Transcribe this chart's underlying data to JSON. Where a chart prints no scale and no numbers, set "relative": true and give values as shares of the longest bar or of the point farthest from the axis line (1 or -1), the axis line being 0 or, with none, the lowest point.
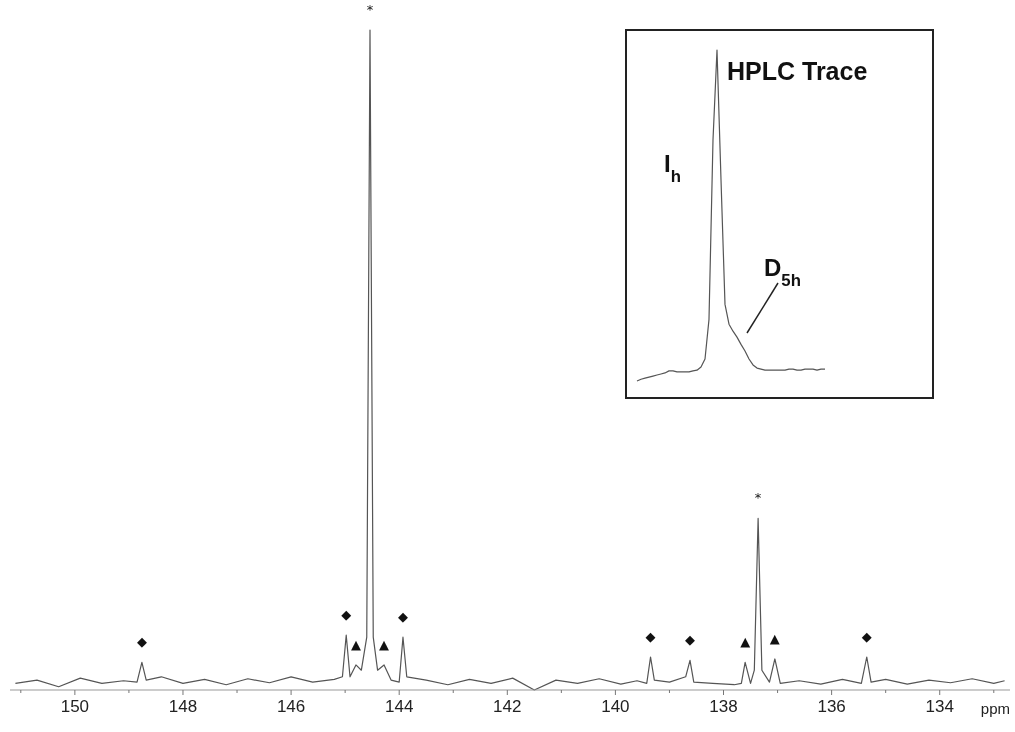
{
  "chart_data": [
    {
      "type": "line",
      "relative": true,
      "xlabel": "ppm",
      "xlim": [
        151.2,
        132.7
      ],
      "color": "#555555",
      "xticks": [
        {
          "value": 151,
          "label": null
        },
        150,
        {
          "value": 149,
          "label": null
        },
        148,
        {
          "value": 147,
          "label": null
        },
        146,
        {
          "value": 145,
          "label": null
        },
        144,
        {
          "value": 143,
          "label": null
        },
        142,
        {
          "value": 141,
          "label": null
        },
        140,
        {
          "value": 139,
          "label": null
        },
        138,
        {
          "value": 137,
          "label": null
        },
        136,
        {
          "value": 135,
          "label": null
        },
        134,
        {
          "value": 133,
          "label": null
        }
      ],
      "x": [
        151.1,
        150.7,
        150.3,
        149.9,
        149.5,
        149.1,
        148.85,
        148.76,
        148.68,
        148.4,
        148.0,
        147.6,
        147.2,
        146.8,
        146.4,
        146.0,
        145.6,
        145.2,
        145.05,
        144.98,
        144.91,
        144.8,
        144.7,
        144.6,
        144.54,
        144.48,
        144.4,
        144.28,
        144.15,
        144.0,
        143.93,
        143.86,
        143.5,
        143.1,
        142.7,
        142.3,
        141.9,
        141.5,
        141.1,
        140.7,
        140.3,
        139.9,
        139.6,
        139.42,
        139.35,
        139.28,
        139.0,
        138.7,
        138.62,
        138.55,
        138.2,
        137.8,
        137.67,
        137.6,
        137.5,
        137.43,
        137.36,
        137.29,
        137.15,
        137.05,
        136.95,
        136.6,
        136.2,
        135.8,
        135.45,
        135.35,
        135.27,
        135.0,
        134.6,
        134.2,
        133.8,
        133.4,
        133.0,
        132.8
      ],
      "values": [
        0.01,
        0.015,
        0.005,
        0.018,
        0.01,
        0.014,
        0.012,
        0.042,
        0.015,
        0.02,
        0.01,
        0.016,
        0.008,
        0.017,
        0.011,
        0.02,
        0.012,
        0.016,
        0.02,
        0.083,
        0.02,
        0.038,
        0.03,
        0.08,
        1.0,
        0.08,
        0.03,
        0.038,
        0.015,
        0.012,
        0.08,
        0.02,
        0.015,
        0.008,
        0.016,
        0.01,
        0.018,
        0.0,
        0.015,
        0.01,
        0.017,
        0.009,
        0.014,
        0.01,
        0.05,
        0.015,
        0.012,
        0.02,
        0.045,
        0.012,
        0.01,
        0.008,
        0.01,
        0.042,
        0.01,
        0.03,
        0.26,
        0.03,
        0.012,
        0.047,
        0.01,
        0.014,
        0.009,
        0.016,
        0.01,
        0.05,
        0.012,
        0.016,
        0.009,
        0.015,
        0.011,
        0.017,
        0.01,
        0.014
      ],
      "annotations": [
        {
          "text": "*",
          "x": 144.54,
          "y": 1.0
        },
        {
          "text": "*",
          "x": 137.36,
          "y": 0.26
        },
        {
          "text": "◆",
          "x": 148.76,
          "y": 0.042
        },
        {
          "text": "◆",
          "x": 144.98,
          "y": 0.083
        },
        {
          "text": "◆",
          "x": 143.93,
          "y": 0.08
        },
        {
          "text": "◆",
          "x": 139.35,
          "y": 0.05
        },
        {
          "text": "◆",
          "x": 138.62,
          "y": 0.045
        },
        {
          "text": "◆",
          "x": 135.35,
          "y": 0.05
        },
        {
          "text": "▲",
          "x": 144.8,
          "y": 0.038
        },
        {
          "text": "▲",
          "x": 144.28,
          "y": 0.038
        },
        {
          "text": "▲",
          "x": 137.6,
          "y": 0.042
        },
        {
          "text": "▲",
          "x": 137.05,
          "y": 0.047
        }
      ]
    },
    {
      "type": "line",
      "relative": true,
      "title": "HPLC Trace",
      "color": "#555555",
      "categories": [
        null,
        null,
        null,
        null,
        null,
        null,
        null,
        null,
        null,
        null,
        null,
        null,
        null,
        null,
        null,
        null,
        null,
        null,
        null,
        null,
        null,
        null,
        null,
        null,
        null,
        null,
        null,
        null,
        null,
        null,
        null,
        null,
        null,
        null,
        null,
        null,
        null,
        null,
        null,
        null,
        null,
        null,
        null,
        null,
        null,
        null,
        null,
        null
      ],
      "values": [
        0.049,
        0.054,
        0.057,
        0.06,
        0.063,
        0.066,
        0.069,
        0.072,
        0.078,
        0.078,
        0.075,
        0.075,
        0.075,
        0.075,
        0.078,
        0.08,
        0.089,
        0.112,
        0.226,
        0.742,
        1.0,
        0.627,
        0.269,
        0.212,
        0.192,
        0.175,
        0.154,
        0.135,
        0.112,
        0.095,
        0.086,
        0.083,
        0.08,
        0.08,
        0.08,
        0.08,
        0.08,
        0.08,
        0.083,
        0.083,
        0.08,
        0.08,
        0.083,
        0.083,
        0.083,
        0.08,
        0.083,
        0.083
      ],
      "annotations": [
        "I$_{h}$",
        "D$_{5h}$"
      ]
    }
  ]
}
